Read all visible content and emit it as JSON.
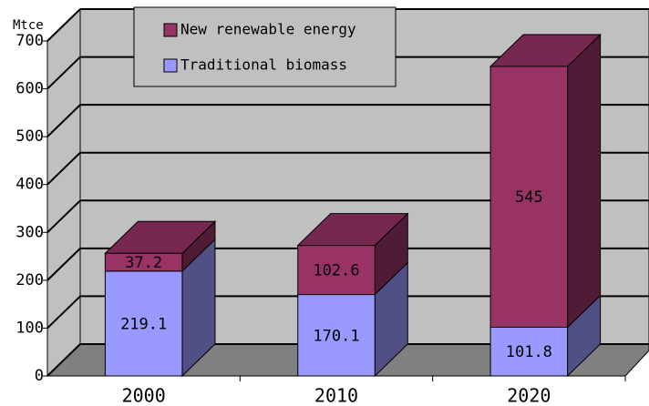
{
  "chart_data": {
    "type": "bar",
    "stacked": true,
    "three_d": true,
    "y_label": "Mtce",
    "categories": [
      "2000",
      "2010",
      "2020"
    ],
    "series": [
      {
        "name": "Traditional biomass",
        "color": "#9999ff",
        "values": [
          219.1,
          170.1,
          101.8
        ]
      },
      {
        "name": "New renewable energy",
        "color": "#993366",
        "values": [
          37.2,
          102.6,
          545
        ]
      }
    ],
    "ylim": [
      0,
      700
    ],
    "yticks": [
      0,
      100,
      200,
      300,
      400,
      500,
      600,
      700
    ],
    "grid": true,
    "legend": "top"
  }
}
